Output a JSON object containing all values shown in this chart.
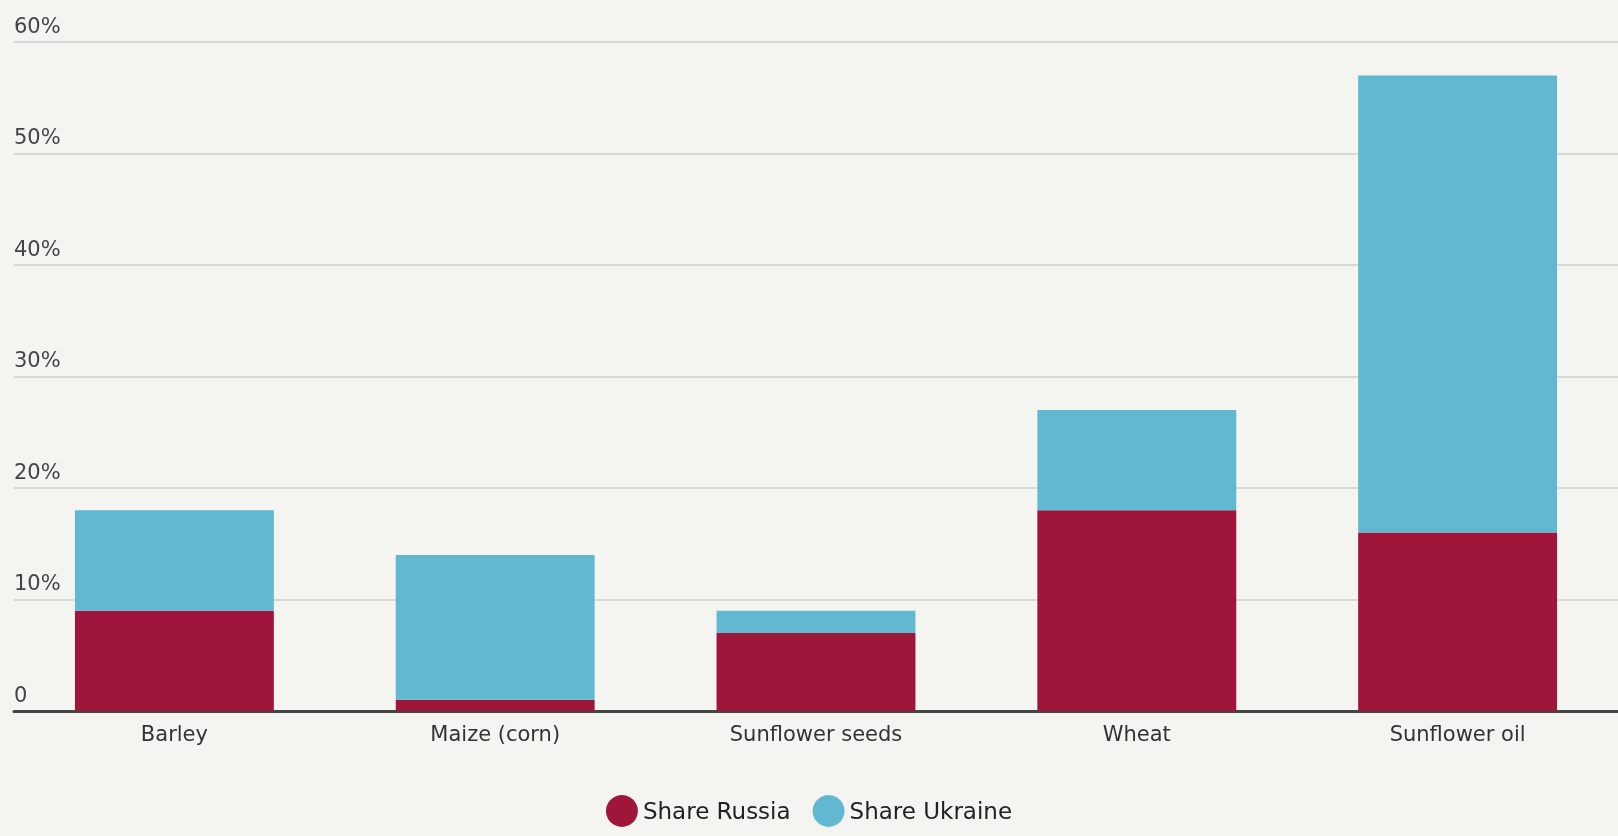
{
  "chart_data": {
    "type": "bar",
    "stacked": true,
    "categories": [
      "Barley",
      "Maize (corn)",
      "Sunflower seeds",
      "Wheat",
      "Sunflower oil"
    ],
    "series": [
      {
        "name": "Share Russia",
        "color": "#a0153a",
        "values": [
          9,
          1,
          7,
          18,
          16
        ]
      },
      {
        "name": "Share Ukraine",
        "color": "#62b8d0",
        "values": [
          9,
          13,
          2,
          9,
          41
        ]
      }
    ],
    "ylim": [
      0,
      60
    ],
    "yticks": [
      0,
      {
        "value": 10,
        "label": "10%"
      },
      {
        "value": 20,
        "label": "20%"
      },
      {
        "value": 30,
        "label": "30%"
      },
      {
        "value": 40,
        "label": "40%"
      },
      {
        "value": 50,
        "label": "50%"
      },
      {
        "value": 60,
        "label": "60%"
      }
    ],
    "grid": "y",
    "legend": "bottom"
  }
}
